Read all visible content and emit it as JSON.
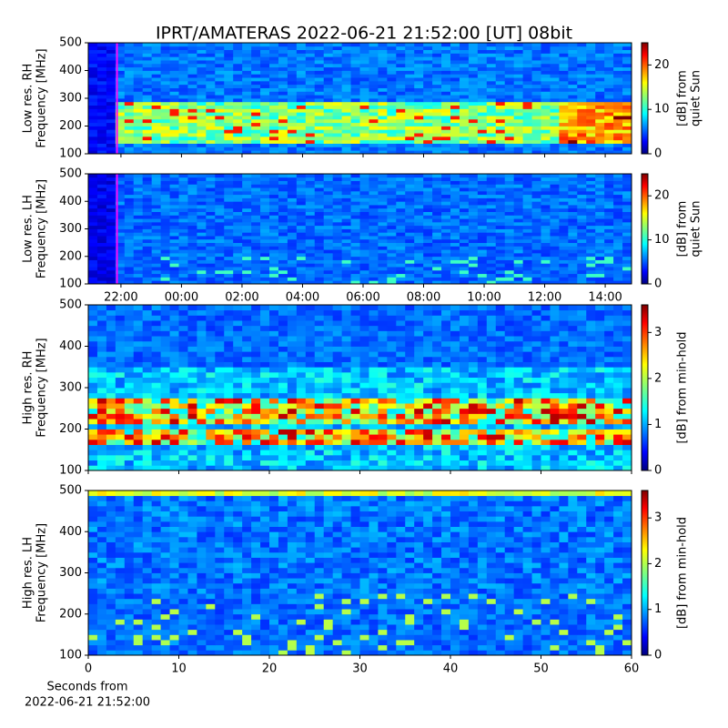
{
  "chart_data": [
    {
      "type": "heatmap",
      "title": "IPRT/AMATERAS 2022-06-21 21:52:00 [UT]   08bit",
      "ylabel": [
        "Low res. RH",
        "Frequency [MHz]"
      ],
      "ylim": [
        100,
        500
      ],
      "yticks": [
        100,
        200,
        300,
        400,
        500
      ],
      "xlim": [
        20.92,
        38.87
      ],
      "vline": 21.87,
      "vline_color": "#ff00ff",
      "colormap": "jet",
      "clim": [
        0,
        25
      ],
      "cticks": [
        0,
        10,
        20
      ],
      "colorbar_label": [
        "[dB] from",
        "quiet Sun"
      ]
    },
    {
      "type": "heatmap",
      "ylabel": [
        "Low res. LH",
        "Frequency [MHz]"
      ],
      "ylim": [
        100,
        500
      ],
      "yticks": [
        100,
        200,
        300,
        400,
        500
      ],
      "xlim": [
        20.92,
        38.87
      ],
      "xticks": [
        {
          "value": 22,
          "label": "22:00"
        },
        {
          "value": 24,
          "label": "00:00"
        },
        {
          "value": 26,
          "label": "02:00"
        },
        {
          "value": 28,
          "label": "04:00"
        },
        {
          "value": 30,
          "label": "06:00"
        },
        {
          "value": 32,
          "label": "08:00"
        },
        {
          "value": 34,
          "label": "10:00"
        },
        {
          "value": 36,
          "label": "12:00"
        },
        {
          "value": 38,
          "label": "14:00"
        }
      ],
      "vline": 21.87,
      "vline_color": "#ff00ff",
      "colormap": "jet",
      "clim": [
        0,
        25
      ],
      "cticks": [
        0,
        10,
        20
      ],
      "colorbar_label": [
        "[dB] from",
        "quiet Sun"
      ]
    },
    {
      "type": "heatmap",
      "ylabel": [
        "High res. RH",
        "Frequency [MHz]"
      ],
      "ylim": [
        100,
        500
      ],
      "yticks": [
        100,
        200,
        300,
        400,
        500
      ],
      "xlim": [
        0,
        60
      ],
      "colormap": "jet",
      "clim": [
        0,
        3.6
      ],
      "cticks": [
        0,
        1,
        2,
        3
      ],
      "colorbar_label": [
        "[dB] from min-hold"
      ]
    },
    {
      "type": "heatmap",
      "ylabel": [
        "High res. LH",
        "Frequency [MHz]"
      ],
      "ylim": [
        100,
        500
      ],
      "yticks": [
        100,
        200,
        300,
        400,
        500
      ],
      "xlim": [
        0,
        60
      ],
      "xticks": [
        0,
        10,
        20,
        30,
        40,
        50,
        60
      ],
      "xlabel": [
        "Seconds from",
        "2022-06-21 21:52:00"
      ],
      "colormap": "jet",
      "clim": [
        0,
        3.6
      ],
      "cticks": [
        0,
        1,
        2,
        3
      ],
      "colorbar_label": [
        "[dB] from min-hold"
      ]
    }
  ]
}
